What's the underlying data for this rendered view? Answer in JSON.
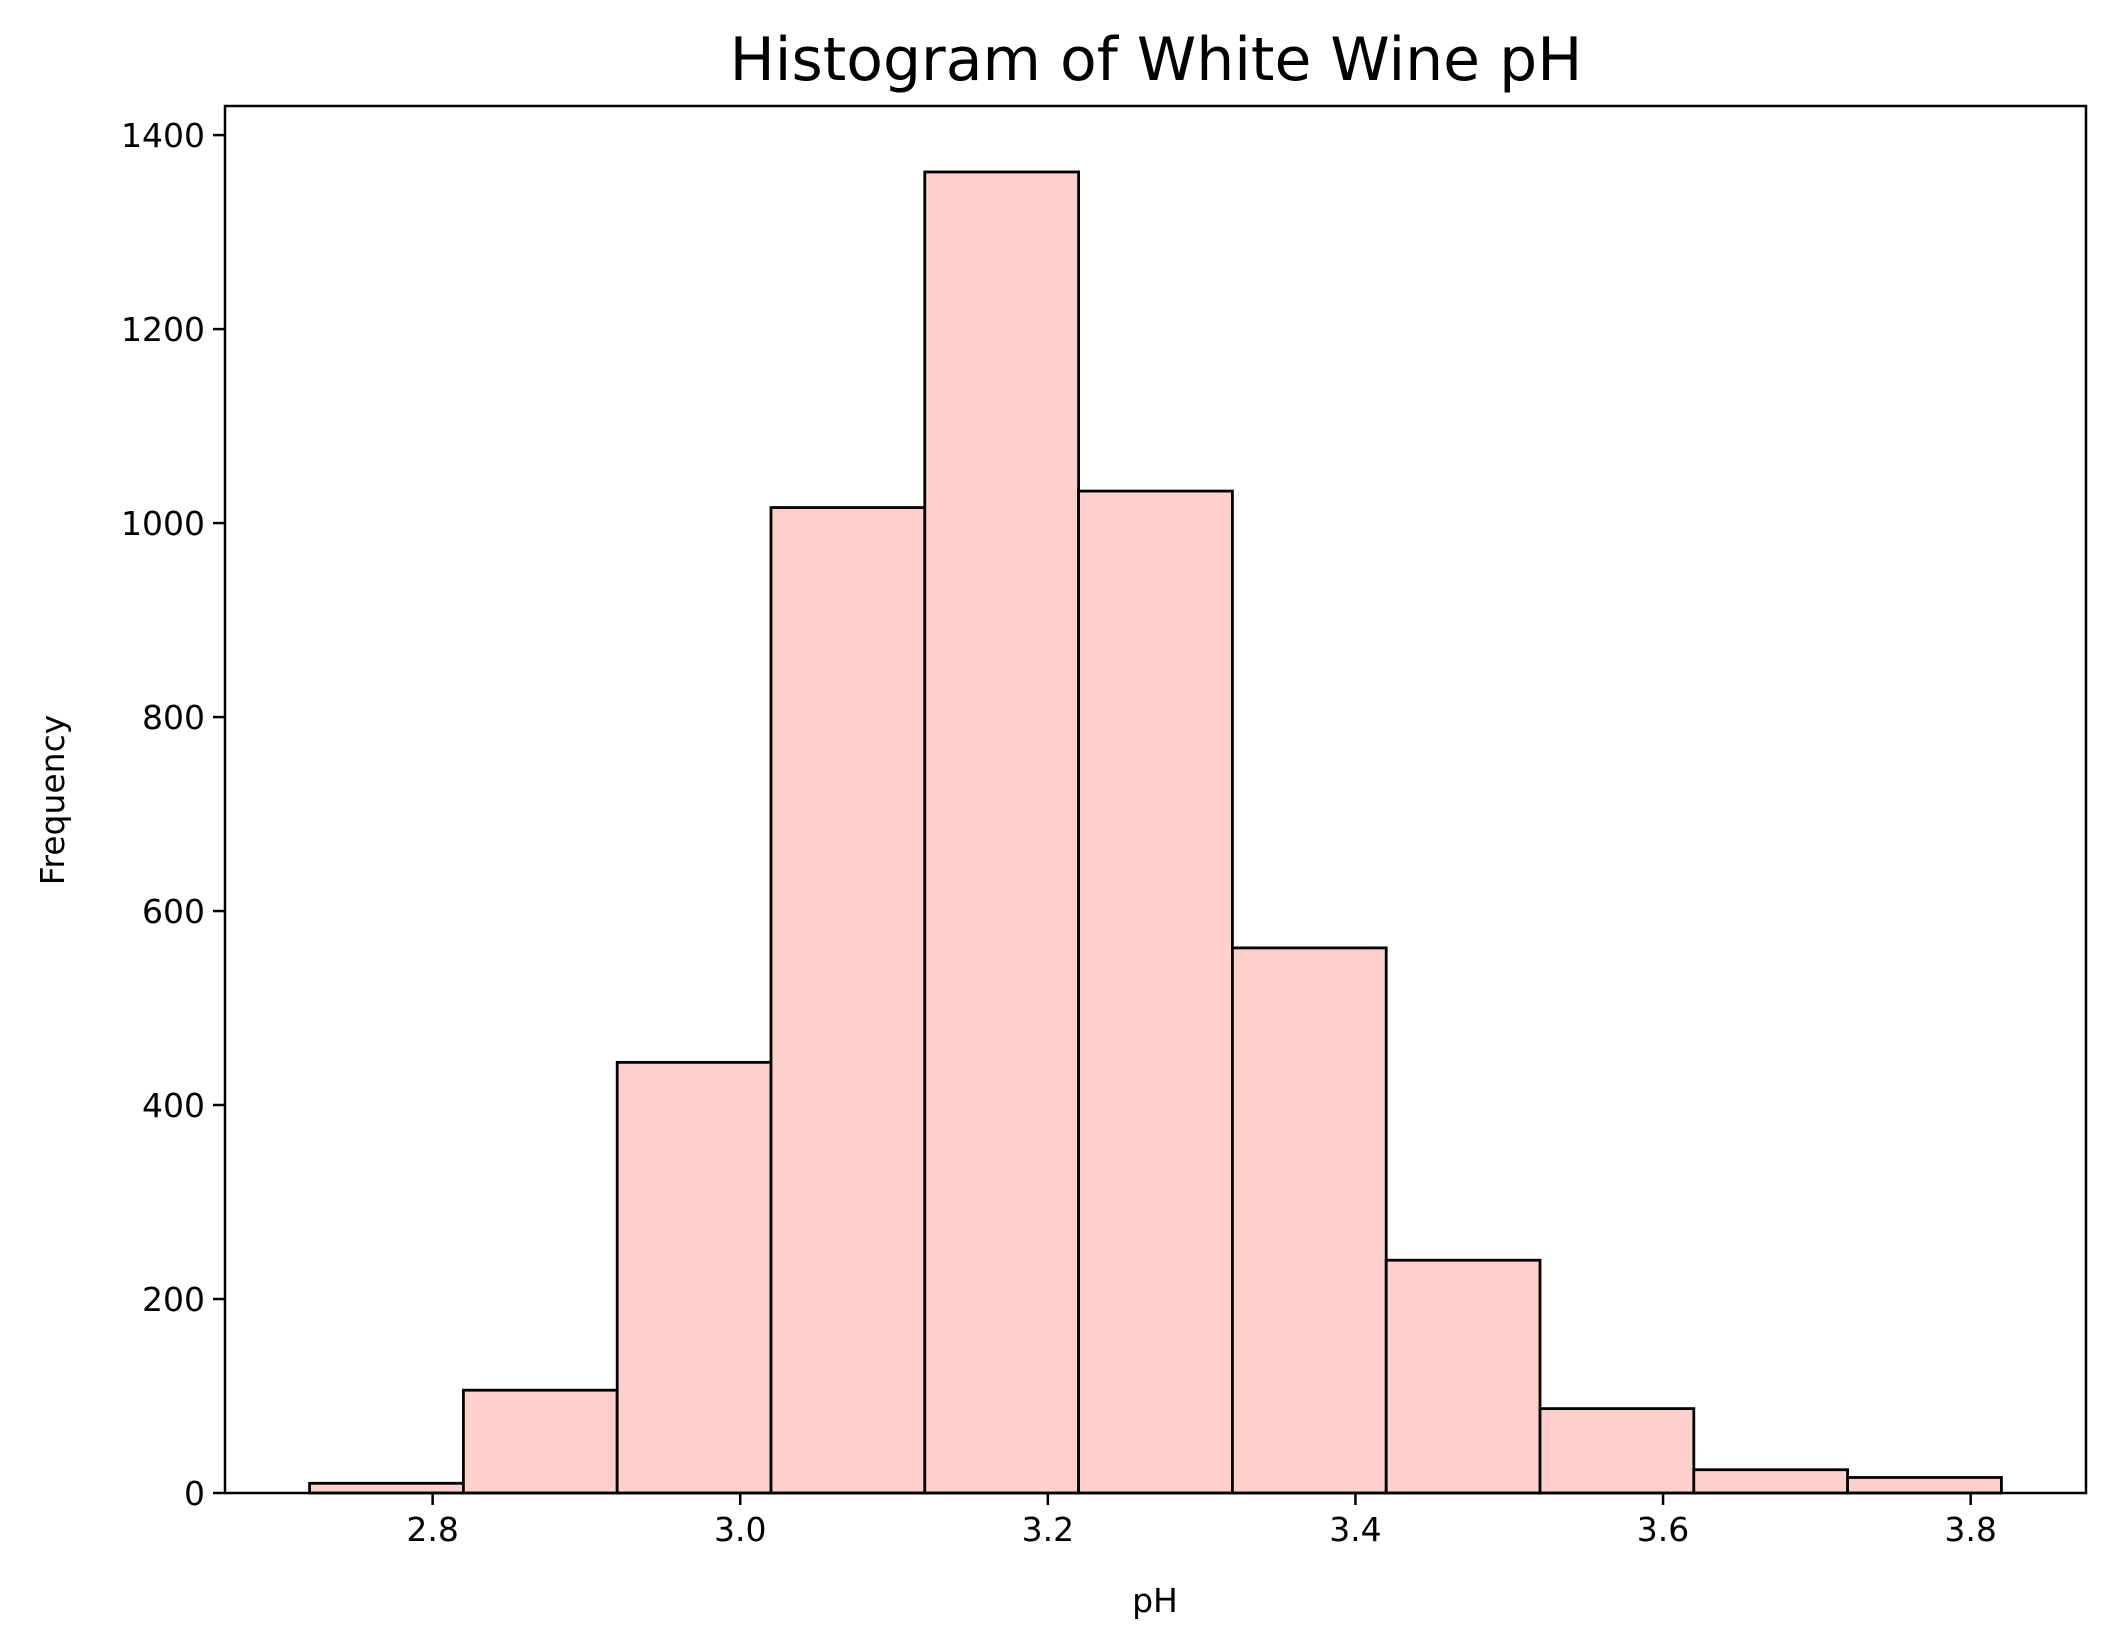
{
  "chart_data": {
    "type": "bar",
    "title": "Histogram of White Wine pH",
    "xlabel": "pH",
    "ylabel": "Frequency",
    "bin_edges": [
      2.72,
      2.82,
      2.92,
      3.02,
      3.12,
      3.22,
      3.32,
      3.42,
      3.52,
      3.62,
      3.72,
      3.82
    ],
    "values": [
      10,
      106,
      444,
      1016,
      1362,
      1033,
      562,
      240,
      87,
      24,
      16
    ],
    "xlim": [
      2.665,
      3.875
    ],
    "ylim": [
      0,
      1430
    ],
    "xticks": [
      "2.8",
      "3.0",
      "3.2",
      "3.4",
      "3.6",
      "3.8"
    ],
    "yticks": [
      "0",
      "200",
      "400",
      "600",
      "800",
      "1000",
      "1200",
      "1400"
    ],
    "grid": false,
    "bar_color": "#ffcfcc",
    "edge_color": "#000000"
  }
}
